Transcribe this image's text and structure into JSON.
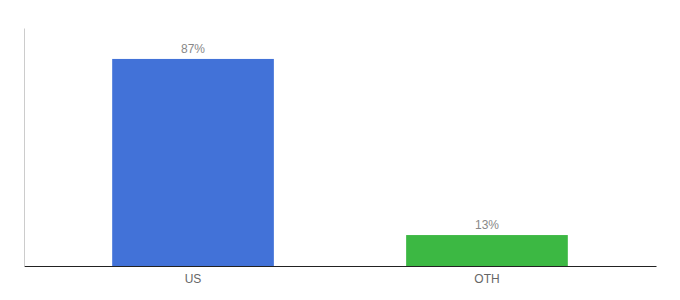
{
  "chart_data": {
    "type": "bar",
    "categories": [
      "US",
      "OTH"
    ],
    "values": [
      87,
      13
    ],
    "value_labels": [
      "87%",
      "13%"
    ],
    "colors": [
      "#4272D8",
      "#3CB843"
    ],
    "ylim": [
      0,
      100
    ],
    "grid": false,
    "data_labels": true,
    "tick_labels": "x"
  }
}
